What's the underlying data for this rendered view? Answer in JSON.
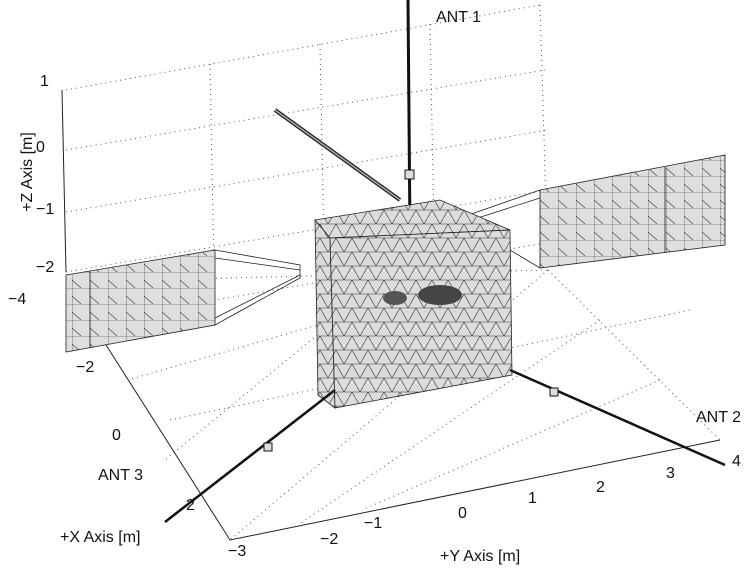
{
  "axes": {
    "z": {
      "label": "+Z Axis [m]",
      "ticks": [
        "1",
        "0",
        "−1",
        "−2"
      ]
    },
    "x": {
      "label": "+X Axis [m]",
      "ticks": [
        "−4",
        "−2",
        "0",
        "2"
      ]
    },
    "y": {
      "label": "+Y Axis [m]",
      "ticks": [
        "−3",
        "−2",
        "−1",
        "0",
        "1",
        "2",
        "3",
        "4"
      ]
    }
  },
  "annotations": {
    "ant1": "ANT 1",
    "ant2": "ANT 2",
    "ant3": "ANT 3"
  }
}
